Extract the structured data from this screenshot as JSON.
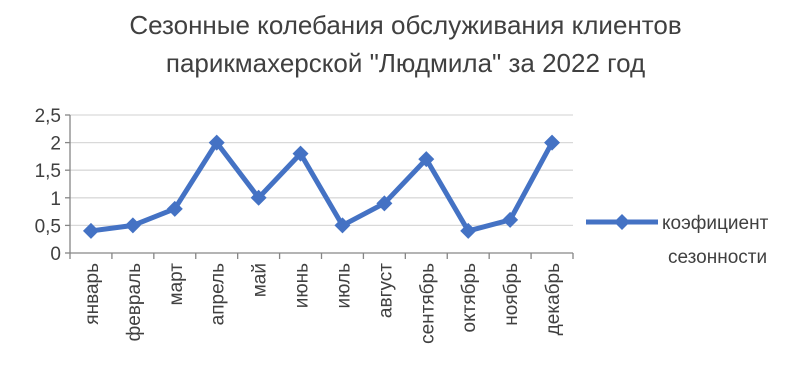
{
  "chart_data": {
    "type": "line",
    "title": "Сезонные колебания обслуживания клиентов парикмахерской \"Людмила\" за 2022 год",
    "title_lines": [
      "Сезонные колебания обслуживания клиентов",
      "парикмахерской \"Людмила\" за 2022 год"
    ],
    "categories": [
      "январь",
      "февраль",
      "март",
      "апрель",
      "май",
      "июнь",
      "июль",
      "август",
      "сентябрь",
      "октябрь",
      "ноябрь",
      "декабрь"
    ],
    "series": [
      {
        "name": "коэфициент сезонности",
        "name_lines": [
          "коэфициент",
          "сезонности"
        ],
        "values": [
          0.4,
          0.5,
          0.8,
          2.0,
          1.0,
          1.8,
          0.5,
          0.9,
          1.7,
          0.4,
          0.6,
          2.0
        ],
        "color": "#4472c4",
        "marker": "diamond"
      }
    ],
    "ylim": [
      0,
      2.5
    ],
    "y_ticks": [
      0,
      0.5,
      1,
      1.5,
      2,
      2.5
    ],
    "y_tick_labels": [
      "0",
      "0,5",
      "1",
      "1,5",
      "2",
      "2,5"
    ],
    "grid": true,
    "legend": "right",
    "xlabel": "",
    "ylabel": ""
  },
  "colors": {
    "series": "#4472c4",
    "grid": "#d9d9d9",
    "axis": "#868686",
    "text": "#404040"
  }
}
